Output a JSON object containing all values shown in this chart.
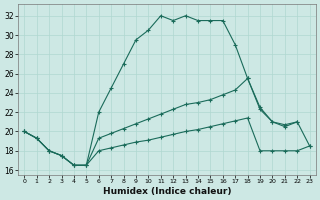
{
  "xlabel": "Humidex (Indice chaleur)",
  "x_ticks": [
    0,
    1,
    2,
    3,
    4,
    5,
    6,
    7,
    8,
    9,
    10,
    11,
    12,
    13,
    14,
    15,
    16,
    17,
    18,
    19,
    20,
    21,
    22,
    23
  ],
  "xlim": [
    -0.5,
    23.5
  ],
  "ylim": [
    15.5,
    33.2
  ],
  "y_ticks": [
    16,
    18,
    20,
    22,
    24,
    26,
    28,
    30,
    32
  ],
  "bg_color": "#cde8e4",
  "grid_color": "#b0d8d0",
  "line_color": "#1a6b5a",
  "series1_x": [
    0,
    1,
    2,
    3,
    4,
    5,
    6,
    7,
    8,
    9,
    10,
    11,
    12,
    13,
    14,
    15,
    16,
    17,
    18,
    19,
    20,
    21,
    22
  ],
  "series1_y": [
    20.0,
    19.3,
    18.0,
    17.5,
    16.5,
    16.5,
    22.0,
    24.5,
    27.0,
    29.5,
    30.5,
    32.0,
    31.5,
    32.0,
    31.5,
    31.5,
    31.5,
    29.0,
    25.5,
    22.5,
    21.0,
    20.5,
    21.0
  ],
  "series2_x": [
    0,
    1,
    2,
    3,
    4,
    5,
    6,
    7,
    8,
    9,
    10,
    11,
    12,
    13,
    14,
    15,
    16,
    17,
    18,
    19,
    20,
    21,
    22,
    23
  ],
  "series2_y": [
    20.0,
    19.3,
    18.0,
    17.5,
    16.5,
    16.5,
    19.3,
    19.8,
    20.3,
    20.8,
    21.3,
    21.8,
    22.3,
    22.8,
    23.0,
    23.3,
    23.8,
    24.3,
    25.5,
    22.3,
    21.0,
    20.7,
    21.0,
    18.5
  ],
  "series3_x": [
    0,
    1,
    2,
    3,
    4,
    5,
    6,
    7,
    8,
    9,
    10,
    11,
    12,
    13,
    14,
    15,
    16,
    17,
    18,
    19,
    20,
    21,
    22,
    23
  ],
  "series3_y": [
    20.0,
    19.3,
    18.0,
    17.5,
    16.5,
    16.5,
    18.0,
    18.3,
    18.6,
    18.9,
    19.1,
    19.4,
    19.7,
    20.0,
    20.2,
    20.5,
    20.8,
    21.1,
    21.4,
    18.0,
    18.0,
    18.0,
    18.0,
    18.5
  ]
}
